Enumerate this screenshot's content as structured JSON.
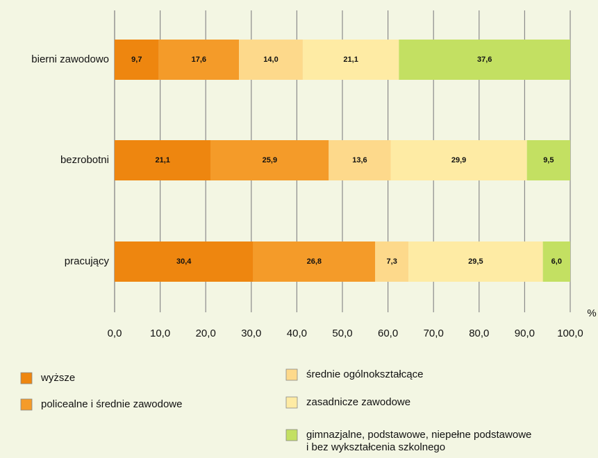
{
  "chart_data": {
    "type": "hbar_stacked",
    "categories": [
      "bierni zawodowo",
      "bezrobotni",
      "pracujący"
    ],
    "series": [
      {
        "name": "wyższe",
        "color": "#ee860f",
        "values": [
          9.7,
          21.1,
          30.4
        ],
        "value_labels": [
          "9,7",
          "21,1",
          "30,4"
        ]
      },
      {
        "name": "policealne i średnie zawodowe",
        "color": "#f49b29",
        "values": [
          17.6,
          25.9,
          26.8
        ],
        "value_labels": [
          "17,6",
          "25,9",
          "26,8"
        ]
      },
      {
        "name": "średnie ogólnokształcące",
        "color": "#fdd98b",
        "values": [
          14.0,
          13.6,
          7.3
        ],
        "value_labels": [
          "14,0",
          "13,6",
          "7,3"
        ]
      },
      {
        "name": "zasadnicze zawodowe",
        "color": "#feeba4",
        "values": [
          21.1,
          29.9,
          29.5
        ],
        "value_labels": [
          "21,1",
          "29,9",
          "29,5"
        ]
      },
      {
        "name": "gimnazjalne, podstawowe, niepełne podstawowe\ni bez wykształcenia szkolnego",
        "color": "#c3e062",
        "values": [
          37.6,
          9.5,
          6.0
        ],
        "value_labels": [
          "37,6",
          "9,5",
          "6,0"
        ]
      }
    ],
    "x_label": "%",
    "xlim": [
      0,
      100
    ],
    "xticks": [
      {
        "value": 0,
        "label": "0,0"
      },
      {
        "value": 10,
        "label": "10,0"
      },
      {
        "value": 20,
        "label": "20,0"
      },
      {
        "value": 30,
        "label": "30,0"
      },
      {
        "value": 40,
        "label": "40,0"
      },
      {
        "value": 50,
        "label": "50,0"
      },
      {
        "value": 60,
        "label": "60,0"
      },
      {
        "value": 70,
        "label": "70,0"
      },
      {
        "value": 80,
        "label": "80,0"
      },
      {
        "value": 90,
        "label": "90,0"
      },
      {
        "value": 100,
        "label": "100,0"
      }
    ],
    "grid": true
  }
}
